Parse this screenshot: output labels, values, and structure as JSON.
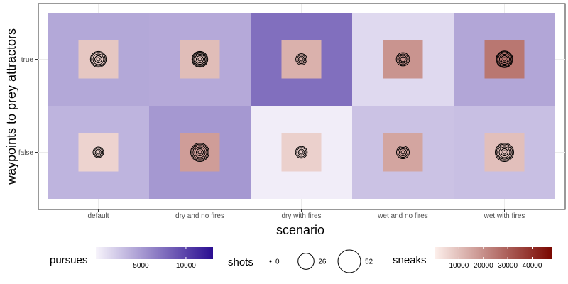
{
  "chart_data": {
    "type": "heatmap",
    "xlabel": "scenario",
    "ylabel": "waypoints to prey attractors",
    "x_categories": [
      "default",
      "dry and no fires",
      "dry with fires",
      "wet and no fires",
      "wet with fires"
    ],
    "y_categories": [
      "true",
      "false"
    ],
    "cells": [
      {
        "x": "default",
        "y": "true",
        "pursues": 4300,
        "sneaks": 8500,
        "shots": [
          1,
          4,
          9,
          15,
          20
        ]
      },
      {
        "x": "dry and no fires",
        "y": "true",
        "pursues": 4200,
        "sneaks": 10500,
        "shots": [
          1,
          4,
          8,
          12,
          16,
          20
        ]
      },
      {
        "x": "dry with fires",
        "y": "true",
        "pursues": 7500,
        "sneaks": 13000,
        "shots": [
          1,
          3,
          6,
          10
        ]
      },
      {
        "x": "wet and no fires",
        "y": "true",
        "pursues": 1500,
        "sneaks": 19000,
        "shots": [
          2,
          5,
          9,
          14
        ]
      },
      {
        "x": "wet with fires",
        "y": "true",
        "pursues": 4400,
        "sneaks": 25000,
        "shots": [
          1,
          4,
          8,
          13,
          18,
          22
        ]
      },
      {
        "x": "default",
        "y": "false",
        "pursues": 3600,
        "sneaks": 6000,
        "shots": [
          1,
          3,
          6,
          9
        ]
      },
      {
        "x": "dry and no fires",
        "y": "false",
        "pursues": 5200,
        "sneaks": 17000,
        "shots": [
          1,
          4,
          9,
          15,
          21,
          27
        ]
      },
      {
        "x": "dry with fires",
        "y": "false",
        "pursues": 400,
        "sneaks": 6500,
        "shots": [
          1,
          3,
          7,
          11
        ]
      },
      {
        "x": "wet and no fires",
        "y": "false",
        "pursues": 2800,
        "sneaks": 15500,
        "shots": [
          1,
          4,
          8,
          13
        ]
      },
      {
        "x": "wet with fires",
        "y": "false",
        "pursues": 3000,
        "sneaks": 10000,
        "shots": [
          1,
          4,
          9,
          15,
          21,
          27
        ]
      }
    ],
    "legends": {
      "pursues": {
        "title": "pursues",
        "ticks": [
          5000,
          10000
        ],
        "range": [
          0,
          13000
        ],
        "low_color": "#f7f4fb",
        "high_color": "#2a0d91"
      },
      "shots": {
        "title": "shots",
        "values": [
          0,
          26,
          52
        ]
      },
      "sneaks": {
        "title": "sneaks",
        "ticks": [
          10000,
          20000,
          30000,
          40000
        ],
        "range": [
          0,
          48000
        ],
        "low_color": "#fdf0ec",
        "high_color": "#7a0700"
      }
    },
    "grid": true,
    "legend_position": "bottom"
  }
}
